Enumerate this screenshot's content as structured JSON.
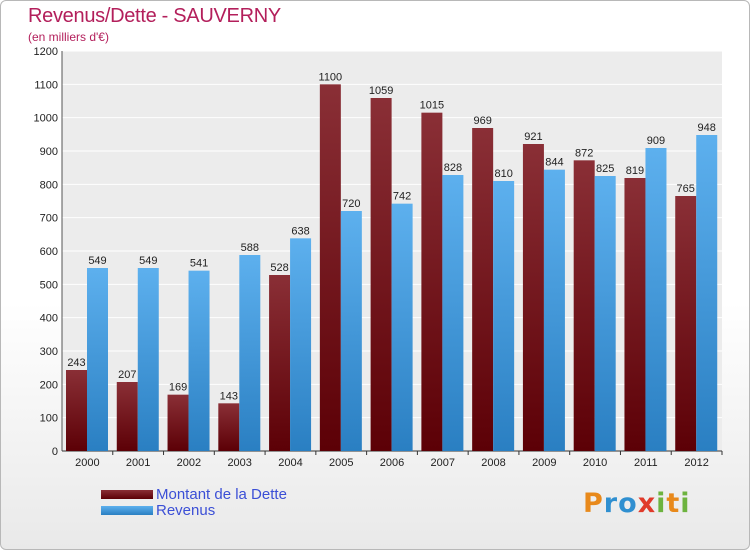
{
  "header": {
    "title": "Revenus/Dette - SAUVERNY",
    "subtitle": "(en milliers d'€)"
  },
  "chart_data": {
    "type": "bar",
    "categories": [
      "2000",
      "2001",
      "2002",
      "2003",
      "2004",
      "2005",
      "2006",
      "2007",
      "2008",
      "2009",
      "2010",
      "2011",
      "2012"
    ],
    "series": [
      {
        "name": "Montant de la Dette",
        "color": "#7a1520",
        "values": [
          243,
          207,
          169,
          143,
          528,
          1100,
          1059,
          1015,
          969,
          921,
          872,
          819,
          765
        ]
      },
      {
        "name": "Revenus",
        "color": "#4aa3e6",
        "values": [
          549,
          549,
          541,
          588,
          638,
          720,
          742,
          828,
          810,
          844,
          825,
          909,
          948
        ]
      }
    ],
    "ylim": [
      0,
      1200
    ],
    "yticks": [
      0,
      100,
      200,
      300,
      400,
      500,
      600,
      700,
      800,
      900,
      1000,
      1100,
      1200
    ],
    "grid": true,
    "legend_position": "bottom-left"
  },
  "logo": {
    "letters": [
      "P",
      "r",
      "o",
      "x",
      "i",
      "t",
      "i"
    ],
    "colors": [
      "#e8891b",
      "#2f8fd0",
      "#2f8fd0",
      "#e03a2a",
      "#6db33f",
      "#e8891b",
      "#6db33f"
    ]
  }
}
